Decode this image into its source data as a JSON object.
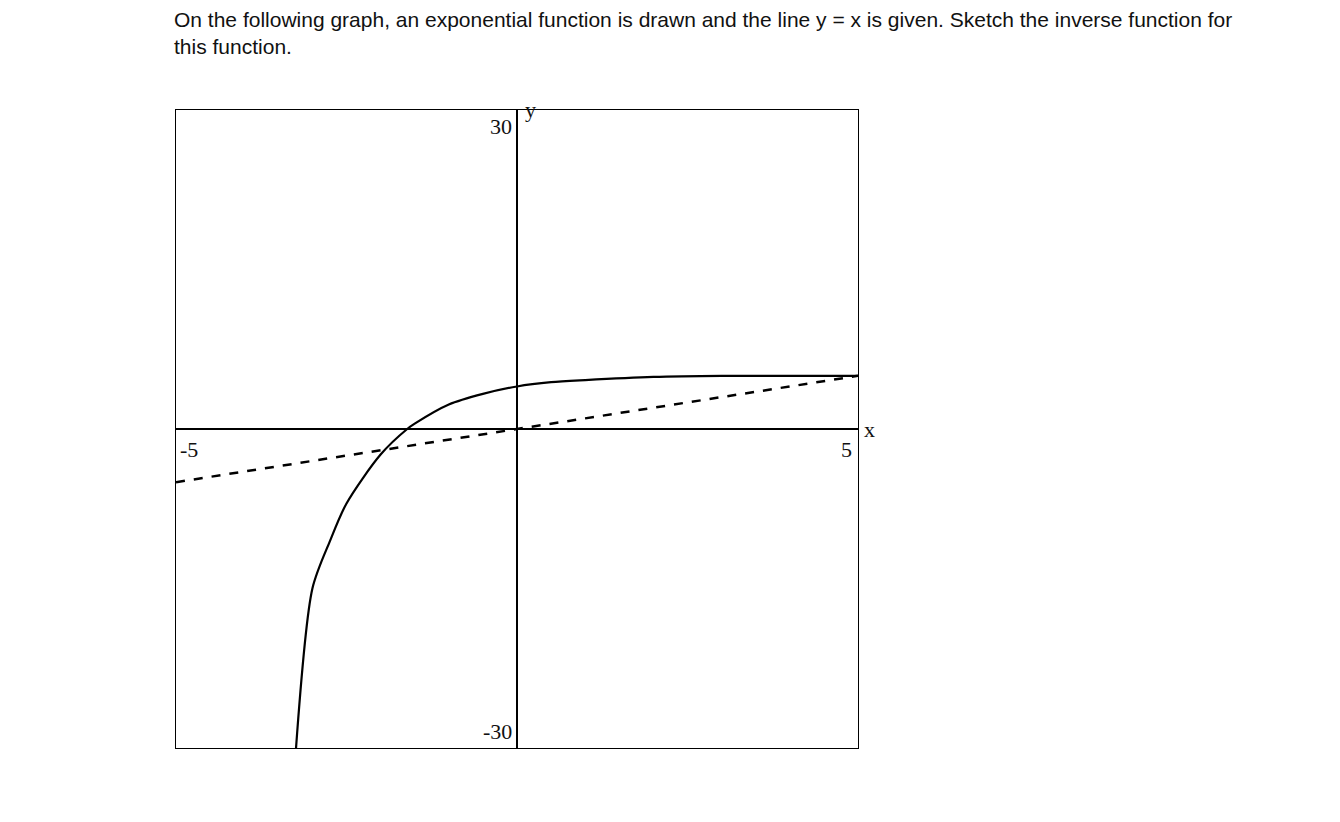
{
  "chart_data": {
    "type": "line",
    "title": "On the following graph, an exponential function is drawn and the line y = x is given.  Sketch the inverse function for this function.",
    "x_label": "x",
    "y_label": "y",
    "xlim": [
      -5,
      5
    ],
    "ylim": [
      -30,
      30
    ],
    "xticks": [
      -5,
      5
    ],
    "yticks": [
      -30,
      30
    ],
    "grid": false,
    "series": [
      {
        "type": "line",
        "color": "#000000",
        "line_style": "solid",
        "x": [
          -3.24,
          -3.0,
          -2.74,
          -2.5,
          -2.0,
          -1.61,
          -1.5,
          -1.0,
          -0.5,
          0,
          0.5,
          1,
          2,
          3,
          4,
          5
        ],
        "values": [
          -30,
          -15,
          -10.5,
          -7,
          -2.4,
          0,
          0.5,
          2.3,
          3.3,
          4,
          4.4,
          4.6,
          4.9,
          5.0,
          5.0,
          5.0
        ]
      },
      {
        "type": "line",
        "color": "#000000",
        "line_style": "dashed",
        "x": [
          -5,
          5
        ],
        "values": [
          -5,
          5
        ]
      }
    ]
  }
}
